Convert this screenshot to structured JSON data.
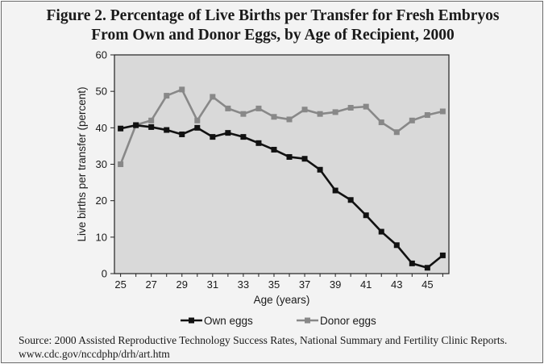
{
  "chart_data": {
    "type": "line",
    "title_line1": "Figure 2. Percentage of Live Births per Transfer for Fresh Embryos",
    "title_line2": "From Own and Donor Eggs, by Age of Recipient, 2000",
    "xlabel": "Age (years)",
    "ylabel": "Live births per transfer (percent)",
    "xlim": [
      25,
      46
    ],
    "ylim": [
      0,
      60
    ],
    "xticks": [
      "25",
      "27",
      "29",
      "31",
      "33",
      "35",
      "37",
      "39",
      "41",
      "43",
      "45"
    ],
    "yticks": [
      "0",
      "10",
      "20",
      "30",
      "40",
      "50",
      "60"
    ],
    "grid": false,
    "legend_position": "bottom",
    "x": [
      25,
      26,
      27,
      28,
      29,
      30,
      31,
      32,
      33,
      34,
      35,
      36,
      37,
      38,
      39,
      40,
      41,
      42,
      43,
      44,
      45,
      46
    ],
    "series": [
      {
        "name": "Own eggs",
        "color": "#111111",
        "values": [
          39.8,
          40.7,
          40.2,
          39.4,
          38.2,
          40.0,
          37.5,
          38.6,
          37.5,
          35.8,
          34.0,
          32.0,
          31.5,
          28.5,
          22.8,
          20.2,
          16.0,
          11.5,
          7.8,
          2.8,
          1.6,
          5.0
        ]
      },
      {
        "name": "Donor eggs",
        "color": "#888888",
        "values": [
          30.0,
          40.8,
          42.0,
          48.8,
          50.5,
          42.0,
          48.5,
          45.3,
          43.8,
          45.3,
          43.0,
          42.3,
          45.0,
          43.8,
          44.3,
          45.5,
          45.8,
          41.5,
          38.8,
          42.0,
          43.5,
          44.5
        ]
      }
    ]
  },
  "source": {
    "text": "Source: 2000 Assisted Reproductive Technology Success Rates, National Summary and Fertility Clinic Reports. www.cdc.gov/nccdphp/drh/art.htm"
  },
  "colors": {
    "plot_background": "#d9d9d9",
    "page_background": "#f3f3f3"
  }
}
